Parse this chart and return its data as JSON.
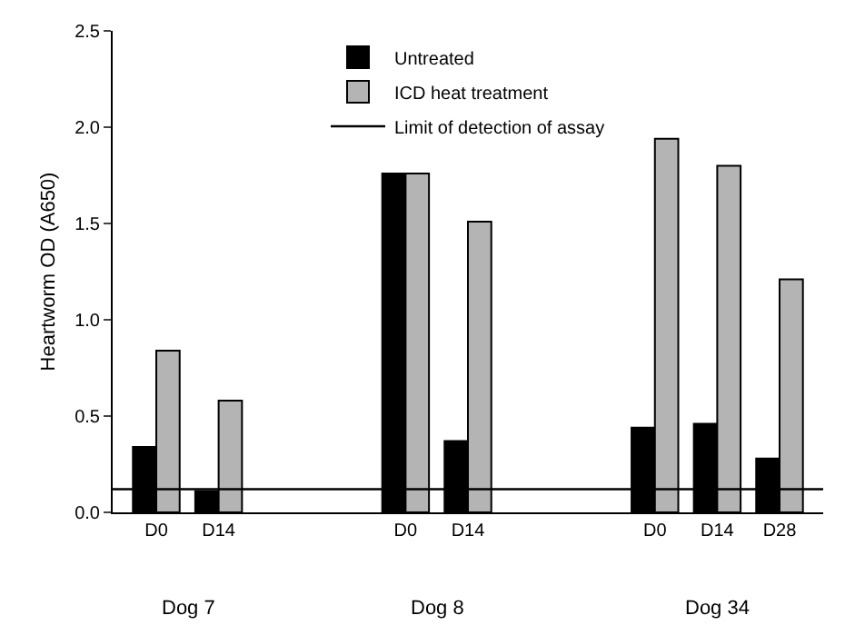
{
  "chart_data": {
    "type": "bar",
    "ylabel": "Heartworm OD (A650)",
    "categories": [
      "D0",
      "D14",
      null,
      null,
      "D0",
      "D14",
      null,
      null,
      "D0",
      "D14",
      "D28"
    ],
    "series": [
      {
        "name": "Untreated",
        "color": "#000000",
        "values": [
          0.34,
          0.11,
          null,
          null,
          1.76,
          0.37,
          null,
          null,
          0.44,
          0.46,
          0.28
        ]
      },
      {
        "name": "ICD heat treatment",
        "color": "#b4b4b4",
        "values": [
          0.84,
          0.58,
          null,
          null,
          1.76,
          1.51,
          null,
          null,
          1.94,
          1.8,
          1.21
        ]
      }
    ],
    "ylim": [
      0,
      2.5
    ],
    "yticks": [
      {
        "value": 0,
        "label": "0.0"
      },
      {
        "value": 0.5,
        "label": "0.5"
      },
      {
        "value": 1,
        "label": "1.0"
      },
      {
        "value": 1.5,
        "label": "1.5"
      },
      {
        "value": 2,
        "label": "2.0"
      },
      {
        "value": 2.5,
        "label": "2.5"
      }
    ],
    "ref_lines": [
      {
        "axis": "y",
        "value": 0.12,
        "label": "Limit of detection of assay",
        "color": "#000000"
      }
    ],
    "annotations": [
      "Dog 7",
      "Dog 8",
      "Dog 34"
    ],
    "grid": false,
    "legend": "top"
  }
}
